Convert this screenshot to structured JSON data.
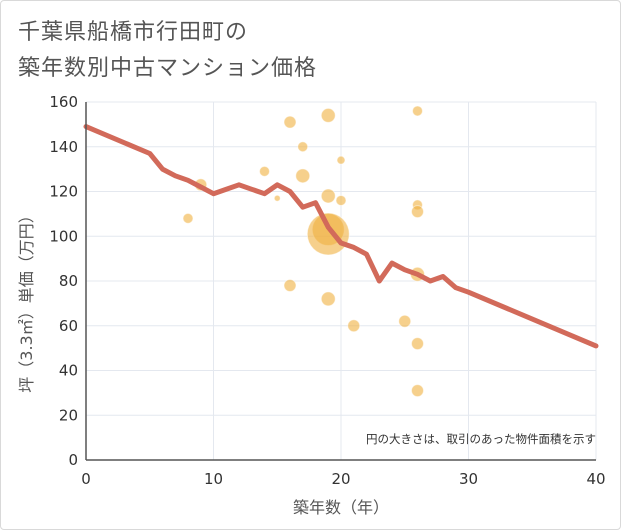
{
  "title_line1": "千葉県船橋市行田町の",
  "title_line2": "築年数別中古マンション価格",
  "note": "円の大きさは、取引のあった物件面積を示す",
  "chart_data": {
    "type": "scatter",
    "xlabel": "築年数（年）",
    "ylabel": "坪（3.3㎡）単価（万円）",
    "xlim": [
      0,
      40
    ],
    "ylim": [
      0,
      160
    ],
    "x_ticks": [
      "0",
      "10",
      "20",
      "30",
      "40"
    ],
    "y_ticks": [
      "0",
      "20",
      "40",
      "60",
      "80",
      "100",
      "120",
      "140",
      "160"
    ],
    "grid": true,
    "colors": {
      "bubble": "#f0b040",
      "trend": "#d26a5a",
      "grid": "#e4e8ef",
      "axis": "#555555"
    },
    "scatter": [
      {
        "x": 8,
        "y": 108,
        "size": 5
      },
      {
        "x": 9,
        "y": 123,
        "size": 6
      },
      {
        "x": 14,
        "y": 129,
        "size": 5
      },
      {
        "x": 15,
        "y": 117,
        "size": 3
      },
      {
        "x": 16,
        "y": 151,
        "size": 6
      },
      {
        "x": 16,
        "y": 78,
        "size": 6
      },
      {
        "x": 17,
        "y": 140,
        "size": 5
      },
      {
        "x": 17,
        "y": 127,
        "size": 7
      },
      {
        "x": 19,
        "y": 154,
        "size": 7
      },
      {
        "x": 19,
        "y": 118,
        "size": 7
      },
      {
        "x": 19,
        "y": 103,
        "size": 16
      },
      {
        "x": 19,
        "y": 101,
        "size": 21
      },
      {
        "x": 19,
        "y": 72,
        "size": 7
      },
      {
        "x": 20,
        "y": 134,
        "size": 4
      },
      {
        "x": 20,
        "y": 116,
        "size": 5
      },
      {
        "x": 21,
        "y": 60,
        "size": 6
      },
      {
        "x": 25,
        "y": 62,
        "size": 6
      },
      {
        "x": 26,
        "y": 156,
        "size": 5
      },
      {
        "x": 26,
        "y": 114,
        "size": 5
      },
      {
        "x": 26,
        "y": 111,
        "size": 6
      },
      {
        "x": 26,
        "y": 83,
        "size": 7
      },
      {
        "x": 26,
        "y": 52,
        "size": 6
      },
      {
        "x": 26,
        "y": 31,
        "size": 6
      }
    ],
    "trend_line": {
      "x": [
        0,
        5,
        6,
        7,
        8,
        9,
        10,
        11,
        12,
        13,
        14,
        15,
        16,
        17,
        18,
        19,
        20,
        21,
        22,
        23,
        24,
        25,
        26,
        27,
        28,
        29,
        30,
        40
      ],
      "y": [
        149,
        137,
        130,
        127,
        125,
        122,
        119,
        121,
        123,
        121,
        119,
        123,
        120,
        113,
        115,
        104,
        97,
        95,
        92,
        80,
        88,
        85,
        83,
        80,
        82,
        77,
        75,
        51
      ]
    }
  }
}
